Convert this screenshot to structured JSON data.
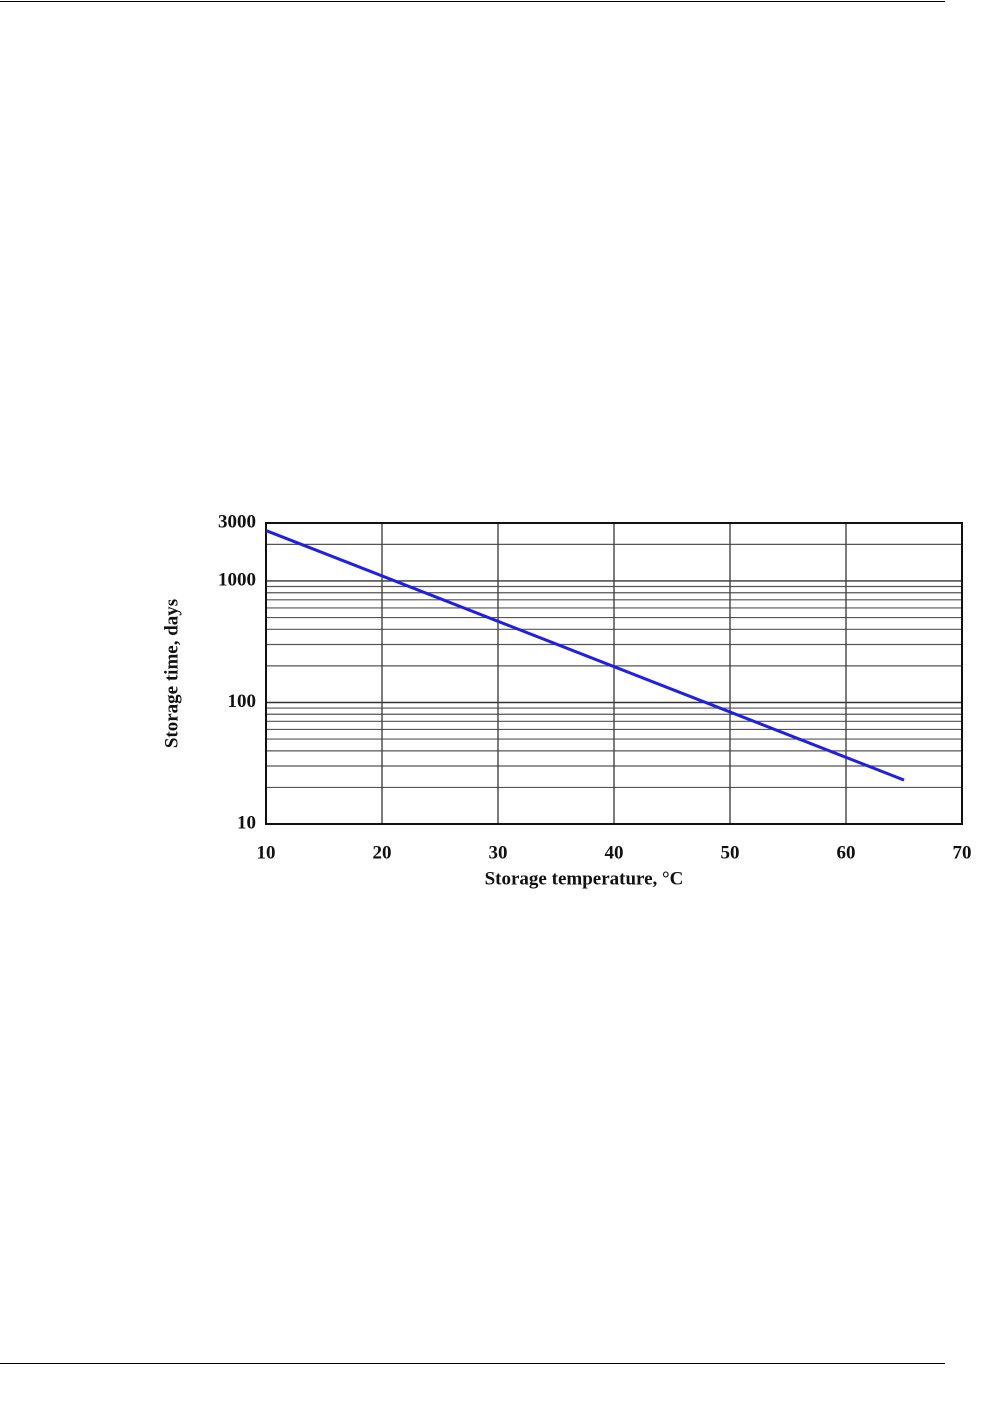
{
  "chart_data": {
    "type": "line",
    "x_label": "Storage temperature, °C",
    "y_label": "Storage time, days",
    "x": [
      10,
      65
    ],
    "series": [
      {
        "color": "#1f1fe6",
        "values": [
          2600,
          23
        ]
      }
    ],
    "xlim": [
      10,
      70
    ],
    "xticks": [
      10,
      20,
      30,
      40,
      50,
      60,
      70
    ],
    "ylim": [
      10,
      3000
    ],
    "yticks": [
      10,
      100,
      1000,
      3000
    ],
    "y_minor_ticks": [
      20,
      30,
      40,
      50,
      60,
      70,
      80,
      90,
      200,
      300,
      400,
      500,
      600,
      700,
      800,
      900,
      2000
    ],
    "y_scale": "log",
    "grid": true
  }
}
